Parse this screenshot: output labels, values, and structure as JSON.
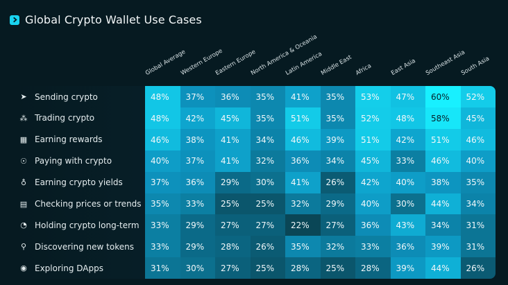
{
  "title": "Global Crypto Wallet Use Cases",
  "title_icon": "chevron-right-icon",
  "colors": {
    "background": "#061a21",
    "accent": "#19d3f0",
    "low": "#0a4656",
    "high": "#18f0ff"
  },
  "chart_data": {
    "type": "heatmap",
    "title": "Global Crypto Wallet Use Cases",
    "columns": [
      "Global Average",
      "Western Europe",
      "Eastern Europe",
      "North America & Oceania",
      "Latin America",
      "Middle East",
      "Africa",
      "East Asia",
      "Southeast Asia",
      "South Asia"
    ],
    "rows": [
      {
        "label": "Sending crypto",
        "icon": "send-icon",
        "values": [
          "48%",
          "37%",
          "36%",
          "35%",
          "41%",
          "35%",
          "53%",
          "47%",
          "60%",
          "52%"
        ]
      },
      {
        "label": "Trading crypto",
        "icon": "trading-icon",
        "values": [
          "48%",
          "42%",
          "45%",
          "35%",
          "51%",
          "35%",
          "52%",
          "48%",
          "58%",
          "45%"
        ]
      },
      {
        "label": "Earning rewards",
        "icon": "gift-icon",
        "values": [
          "46%",
          "38%",
          "41%",
          "34%",
          "46%",
          "39%",
          "51%",
          "42%",
          "51%",
          "46%"
        ]
      },
      {
        "label": "Paying with crypto",
        "icon": "pay-hand-icon",
        "values": [
          "40%",
          "37%",
          "41%",
          "32%",
          "36%",
          "34%",
          "45%",
          "33%",
          "46%",
          "40%"
        ]
      },
      {
        "label": "Earning crypto yields",
        "icon": "yield-icon",
        "values": [
          "37%",
          "36%",
          "29%",
          "30%",
          "41%",
          "26%",
          "42%",
          "40%",
          "38%",
          "35%"
        ]
      },
      {
        "label": "Checking prices or trends",
        "icon": "chart-icon",
        "values": [
          "35%",
          "33%",
          "25%",
          "25%",
          "32%",
          "29%",
          "40%",
          "30%",
          "44%",
          "34%"
        ]
      },
      {
        "label": "Holding crypto long-term",
        "icon": "clock-icon",
        "values": [
          "33%",
          "29%",
          "27%",
          "27%",
          "22%",
          "27%",
          "36%",
          "43%",
          "34%",
          "31%"
        ]
      },
      {
        "label": "Discovering new tokens",
        "icon": "search-icon",
        "values": [
          "33%",
          "29%",
          "28%",
          "26%",
          "35%",
          "32%",
          "33%",
          "36%",
          "39%",
          "31%"
        ]
      },
      {
        "label": "Exploring DApps",
        "icon": "compass-icon",
        "values": [
          "31%",
          "30%",
          "27%",
          "25%",
          "28%",
          "25%",
          "28%",
          "39%",
          "44%",
          "26%"
        ]
      }
    ]
  }
}
